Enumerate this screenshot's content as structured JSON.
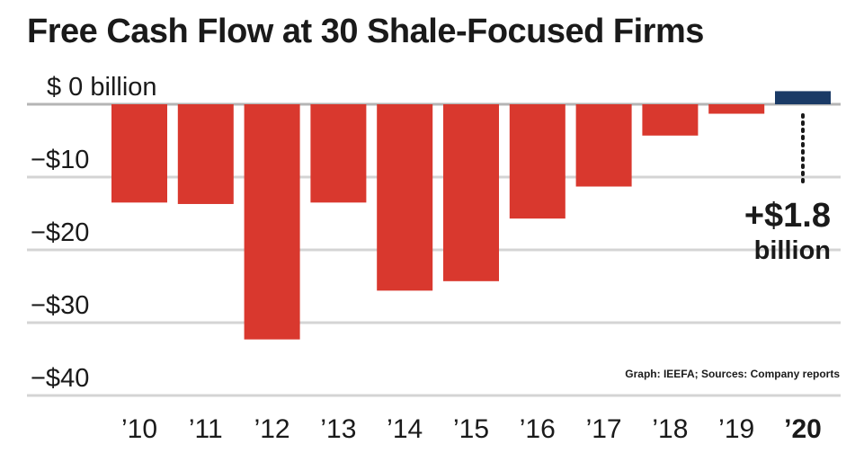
{
  "chart_data": {
    "type": "bar",
    "title": "Free Cash Flow at 30 Shale-Focused Firms",
    "categories": [
      "’10",
      "’11",
      "’12",
      "’13",
      "’14",
      "’15",
      "’16",
      "’17",
      "’18",
      "’19",
      "’20"
    ],
    "values": [
      -13.5,
      -13.7,
      -32.3,
      -13.5,
      -25.6,
      -24.3,
      -15.7,
      -11.3,
      -4.3,
      -1.3,
      1.8
    ],
    "ylim": [
      -40,
      0
    ],
    "yticks": [
      {
        "value": 0,
        "label": "$  0 billion"
      },
      {
        "value": -10,
        "label": "−$10"
      },
      {
        "value": -20,
        "label": "−$20"
      },
      {
        "value": -30,
        "label": "−$30"
      },
      {
        "value": -40,
        "label": "−$40"
      }
    ],
    "grid": true,
    "highlight_category": "’20",
    "annotation": {
      "value": "+$1.8",
      "unit": "billion"
    },
    "source": "Graph: IEEFA; Sources: Company reports",
    "colors": {
      "negative": "#d9382e",
      "positive": "#1a3a66",
      "grid": "#d4d4d4",
      "axis": "#b5b5b5",
      "text": "#1a1a1a"
    }
  }
}
